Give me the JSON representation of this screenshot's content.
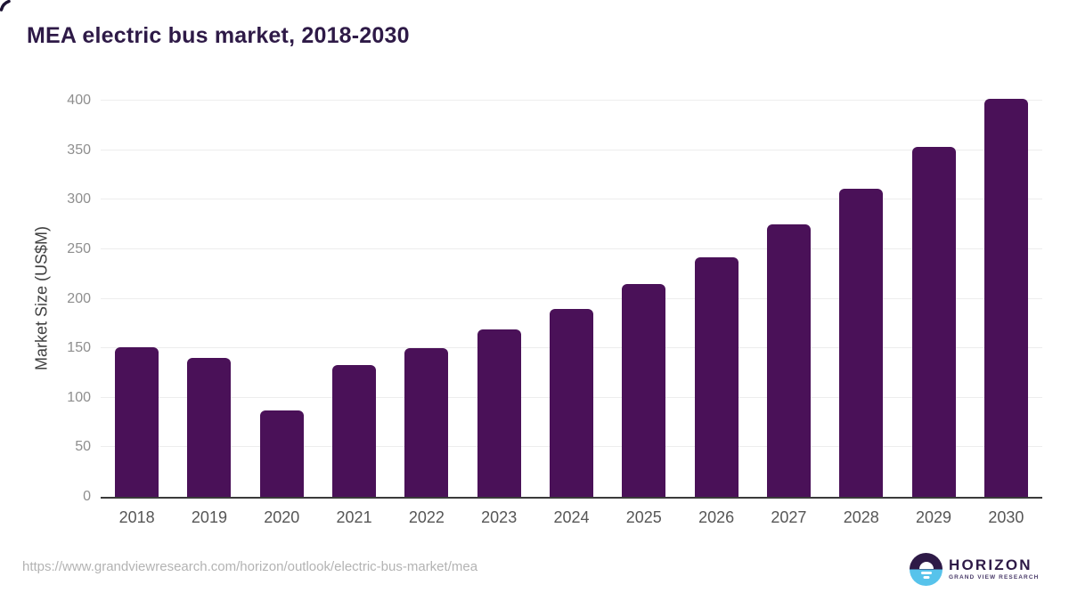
{
  "page_title": "MEA electric bus market, 2018-2030",
  "chart_data": {
    "type": "bar",
    "title": "MEA electric bus market, 2018-2030",
    "categories": [
      "2018",
      "2019",
      "2020",
      "2021",
      "2022",
      "2023",
      "2024",
      "2025",
      "2026",
      "2027",
      "2028",
      "2029",
      "2030"
    ],
    "values": [
      151,
      140,
      87,
      133,
      150,
      169,
      190,
      215,
      242,
      275,
      311,
      353,
      402
    ],
    "xlabel": "",
    "ylabel": "Market Size (US$M)",
    "ylim": [
      0,
      400
    ],
    "yticks": [
      0,
      50,
      100,
      150,
      200,
      250,
      300,
      350,
      400
    ],
    "grid": true,
    "legend": "none",
    "bar_color": "#4A1158"
  },
  "footer": {
    "source_url": "https://www.grandviewresearch.com/horizon/outlook/electric-bus-market/mea",
    "logo": {
      "name": "HORIZON",
      "subtitle": "GRAND VIEW RESEARCH"
    }
  },
  "colors": {
    "title_text": "#2E1A47",
    "bar": "#4A1158",
    "logo_blue": "#57C3EB",
    "logo_purple": "#2E1A47",
    "gridline": "#EDEDED",
    "axis_line": "#3A3A3A",
    "y_tick_text": "#8E8E8E",
    "x_tick_text": "#565656",
    "url_text": "#B3B3B3"
  }
}
